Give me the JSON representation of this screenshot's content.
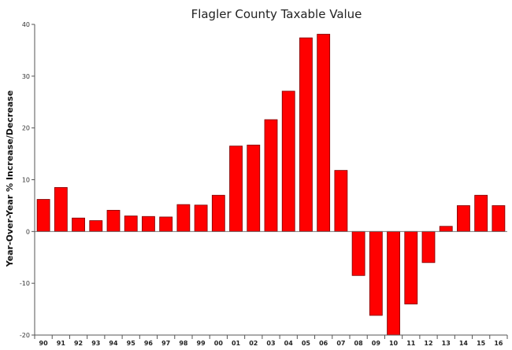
{
  "chart_data": {
    "type": "bar",
    "title": "Flagler County Taxable Value",
    "xlabel": "",
    "ylabel": "Year-Over-Year % Increase/Decrease",
    "ylim": [
      -20,
      40
    ],
    "yticks": [
      "-20",
      "-10",
      "0",
      "10",
      "20",
      "30",
      "40"
    ],
    "grid": false,
    "bar_color": "#ff0000",
    "bar_outline": "#7a0000",
    "categories": [
      "90",
      "91",
      "92",
      "93",
      "94",
      "95",
      "96",
      "97",
      "98",
      "99",
      "00",
      "01",
      "02",
      "03",
      "04",
      "05",
      "06",
      "07",
      "08",
      "09",
      "10",
      "11",
      "12",
      "13",
      "14",
      "15",
      "16"
    ],
    "values": [
      6.2,
      8.5,
      2.6,
      2.1,
      4.1,
      3.0,
      2.9,
      2.8,
      5.2,
      5.1,
      7.0,
      16.5,
      16.7,
      21.6,
      27.1,
      37.4,
      38.1,
      11.8,
      -8.5,
      -16.2,
      -20.0,
      -14.0,
      -6.0,
      1.0,
      5.0,
      7.0,
      5.0
    ]
  }
}
